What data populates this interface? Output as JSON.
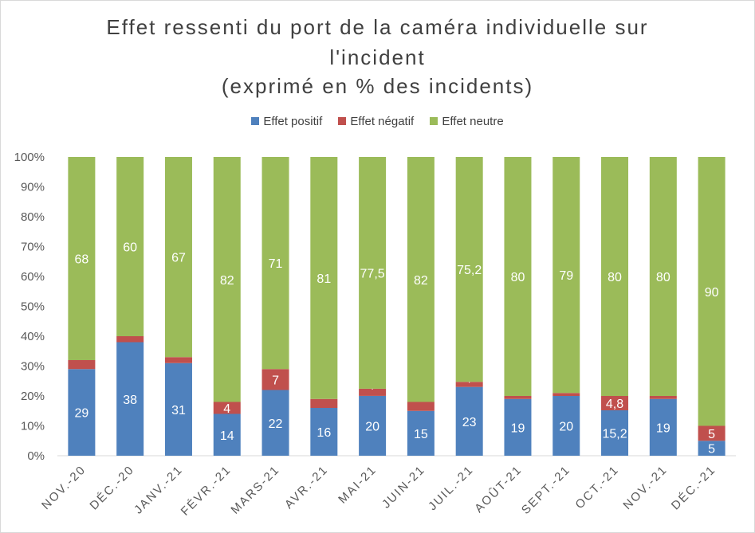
{
  "chart_data": {
    "type": "bar",
    "stacked": true,
    "title_lines": [
      "Effet ressenti du port de la caméra individuelle sur",
      "l'incident",
      "(exprimé en % des incidents)"
    ],
    "categories": [
      "NOV.-20",
      "DÉC.-20",
      "JANV.-21",
      "FÉVR.-21",
      "MARS-21",
      "AVR.-21",
      "MAI-21",
      "JUIN-21",
      "JUIL.-21",
      "AOÛT-21",
      "SEPT.-21",
      "OCT.-21",
      "NOV.-21",
      "DÉC.-21"
    ],
    "series": [
      {
        "name": "Effet positif",
        "color": "#4f81bd",
        "values": [
          29,
          38,
          31,
          14,
          22,
          16,
          20,
          15,
          23,
          19,
          20,
          15.2,
          19,
          5
        ],
        "labels": [
          "29",
          "38",
          "31",
          "14",
          "22",
          "16",
          "20",
          "15",
          "23",
          "19",
          "20",
          "15,2",
          "19",
          "5"
        ]
      },
      {
        "name": "Effet négatif",
        "color": "#c0504d",
        "values": [
          3,
          2,
          2,
          4,
          7,
          3,
          2.4,
          3,
          1.7,
          1,
          1,
          4.8,
          1,
          5
        ],
        "labels": [
          "3",
          "2",
          "2",
          "4",
          "7",
          "3",
          "2,4",
          "3",
          "1,7",
          "1",
          "1",
          "4,8",
          "1",
          "5"
        ]
      },
      {
        "name": "Effet neutre",
        "color": "#9bbb59",
        "values": [
          68,
          60,
          67,
          82,
          71,
          81,
          77.5,
          82,
          75.2,
          80,
          79,
          80,
          80,
          90
        ],
        "labels": [
          "68",
          "60",
          "67",
          "82",
          "71",
          "81",
          "77,5",
          "82",
          "75,2",
          "80",
          "79",
          "80",
          "80",
          "90"
        ]
      }
    ],
    "yticks": [
      "0%",
      "10%",
      "20%",
      "30%",
      "40%",
      "50%",
      "60%",
      "70%",
      "80%",
      "90%",
      "100%"
    ],
    "ylim": [
      0,
      100
    ],
    "percent_stacked": true,
    "legend_position": "top",
    "grid": false
  }
}
